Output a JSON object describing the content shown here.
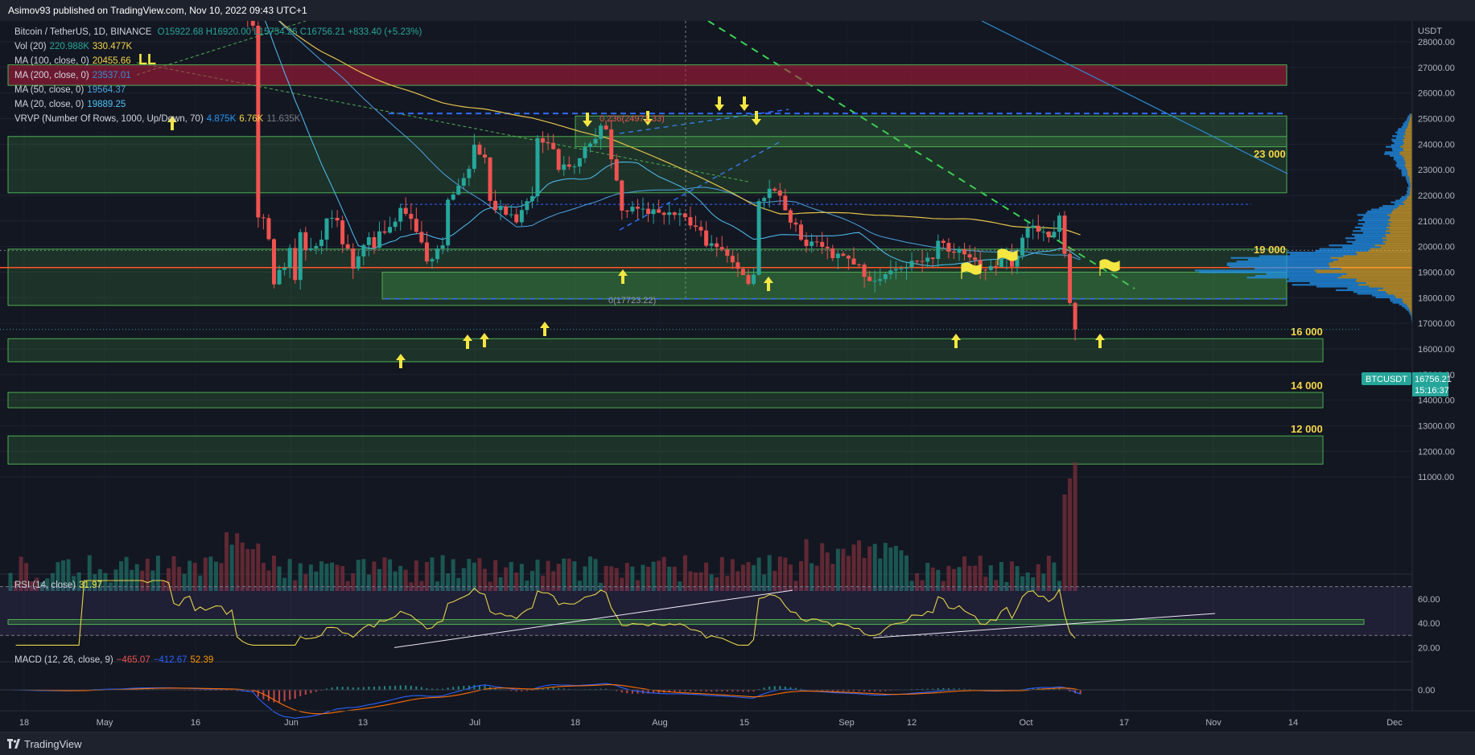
{
  "header": {
    "title": "Asimov93 published on TradingView.com, Nov 10, 2022 09:43 UTC+1"
  },
  "footer": {
    "brand": "TradingView"
  },
  "legend": {
    "symbol": "Bitcoin / TetherUS, 1D, BINANCE",
    "ohlc": "O15922.68 H16920.00 L15754.26 C16756.21 +833.40 (+5.23%)",
    "vol": {
      "label": "Vol (20)",
      "v1": "220.988K",
      "v2": "330.477K"
    },
    "ma100": {
      "label": "MA (100, close, 0)",
      "value": "20455.66"
    },
    "ma200": {
      "label": "MA (200, close, 0)",
      "value": "23537.01"
    },
    "ma50": {
      "label": "MA (50, close, 0)",
      "value": "19564.37"
    },
    "ma20": {
      "label": "MA (20, close, 0)",
      "value": "19889.25"
    },
    "vrvp": {
      "label": "VRVP (Number Of Rows, 1000, Up/Down, 70)",
      "v1": "4.875K",
      "v2": "6.76K",
      "v3": "11.635K"
    },
    "rsi": {
      "label": "RSI (14, close)",
      "value": "31.97"
    },
    "macd": {
      "label": "MACD (12, 26, close, 9)",
      "v1": "−465.07",
      "v2": "−412.67",
      "v3": "52.39"
    }
  },
  "colors": {
    "bg": "#131722",
    "up": "#26a69a",
    "down": "#ef5350",
    "zone": "#4caf50",
    "redzone": "#b71c3c",
    "ma100": "#e6c34a",
    "ma200": "#2f8fd8",
    "ma50": "#4aa3df",
    "ma20": "#4fc3f7",
    "annotation": "#f5e642",
    "support": "#ff5722",
    "rsi": "#e8d34a",
    "macd": "#2962ff",
    "signal": "#ff6d00"
  },
  "chart_data": {
    "type": "candlestick",
    "symbol": "BTCUSDT",
    "timeframe": "1D",
    "x_axis": {
      "labels": [
        "18",
        "May",
        "16",
        "Jun",
        "13",
        "Jul",
        "18",
        "Aug",
        "15",
        "Sep",
        "12",
        "Oct",
        "17",
        "Nov",
        "14",
        "Dec"
      ]
    },
    "y_axis": {
      "unit": "USDT",
      "ticks": [
        "11000.00",
        "12000.00",
        "13000.00",
        "14000.00",
        "15000.00",
        "16000.00",
        "17000.00",
        "18000.00",
        "19000.00",
        "20000.00",
        "21000.00",
        "22000.00",
        "23000.00",
        "24000.00",
        "25000.00",
        "26000.00",
        "27000.00",
        "28000.00"
      ],
      "range": [
        10500,
        28600
      ]
    },
    "last_price": {
      "value": "16756.21",
      "countdown": "15:16:37",
      "tag": "BTCUSDT"
    },
    "zones": [
      {
        "label": "23 000",
        "low": 22100,
        "high": 24300
      },
      {
        "label": "19 000",
        "low": 17700,
        "high": 19900
      },
      {
        "label": "16 000",
        "low": 15500,
        "high": 16400
      },
      {
        "label": "14 000",
        "low": 13700,
        "high": 14300
      },
      {
        "label": "12 000",
        "low": 11500,
        "high": 12600
      }
    ],
    "fib_labels": [
      "0.236(24971.33)",
      "0(17723.22)"
    ],
    "annotations": [
      "LL"
    ],
    "rsi": {
      "ticks": [
        "20.00",
        "40.00",
        "60.00"
      ],
      "last": 31.97
    },
    "macd": {
      "ticks": [
        "0.00"
      ]
    },
    "segments": [
      [
        0,
        6,
        29500,
        29200
      ],
      [
        14,
        1,
        30000,
        29800
      ],
      [
        22,
        20,
        30300,
        30000
      ],
      [
        40,
        30,
        30000,
        29300
      ],
      [
        43,
        36,
        29300,
        21200
      ],
      [
        47,
        12,
        21200,
        20300
      ],
      [
        49,
        6,
        20300,
        18500
      ],
      [
        50,
        4,
        18500,
        19800
      ],
      [
        56,
        12,
        19800,
        21200
      ],
      [
        60,
        10,
        21200,
        20100
      ],
      [
        63,
        6,
        20100,
        19000
      ],
      [
        65,
        4,
        19000,
        20500
      ],
      [
        70,
        10,
        20500,
        21600
      ],
      [
        74,
        8,
        21600,
        19300
      ],
      [
        79,
        10,
        19300,
        21800
      ],
      [
        83,
        8,
        21800,
        23900
      ],
      [
        88,
        10,
        23900,
        21700
      ],
      [
        91,
        6,
        21700,
        21000
      ],
      [
        96,
        10,
        21000,
        24300
      ],
      [
        100,
        8,
        24300,
        23000
      ],
      [
        104,
        8,
        23000,
        23600
      ],
      [
        108,
        8,
        23600,
        24800
      ],
      [
        112,
        8,
        24800,
        23500
      ],
      [
        114,
        4,
        23500,
        21500
      ],
      [
        116,
        4,
        21500,
        21400
      ],
      [
        121,
        10,
        21400,
        21300
      ],
      [
        126,
        10,
        21300,
        20100
      ],
      [
        132,
        12,
        20100,
        19800
      ],
      [
        135,
        6,
        19800,
        18700
      ],
      [
        140,
        10,
        18700,
        21800
      ],
      [
        142,
        4,
        21800,
        22300
      ],
      [
        145,
        6,
        22300,
        20200
      ],
      [
        150,
        10,
        20200,
        19700
      ],
      [
        156,
        12,
        19700,
        18700
      ],
      [
        162,
        12,
        18700,
        19200
      ],
      [
        169,
        14,
        19200,
        20100
      ],
      [
        176,
        14,
        20100,
        19100
      ],
      [
        184,
        16,
        19100,
        19600
      ],
      [
        188,
        8,
        19600,
        19300
      ],
      [
        190,
        4,
        19300,
        20700
      ],
      [
        194,
        8,
        20700,
        20500
      ],
      [
        197,
        6,
        20500,
        21100
      ],
      [
        199,
        4,
        21100,
        20300
      ],
      [
        200,
        2,
        20300,
        18500
      ],
      [
        201,
        2,
        18500,
        15900
      ],
      [
        202,
        2,
        15900,
        16756
      ]
    ]
  }
}
